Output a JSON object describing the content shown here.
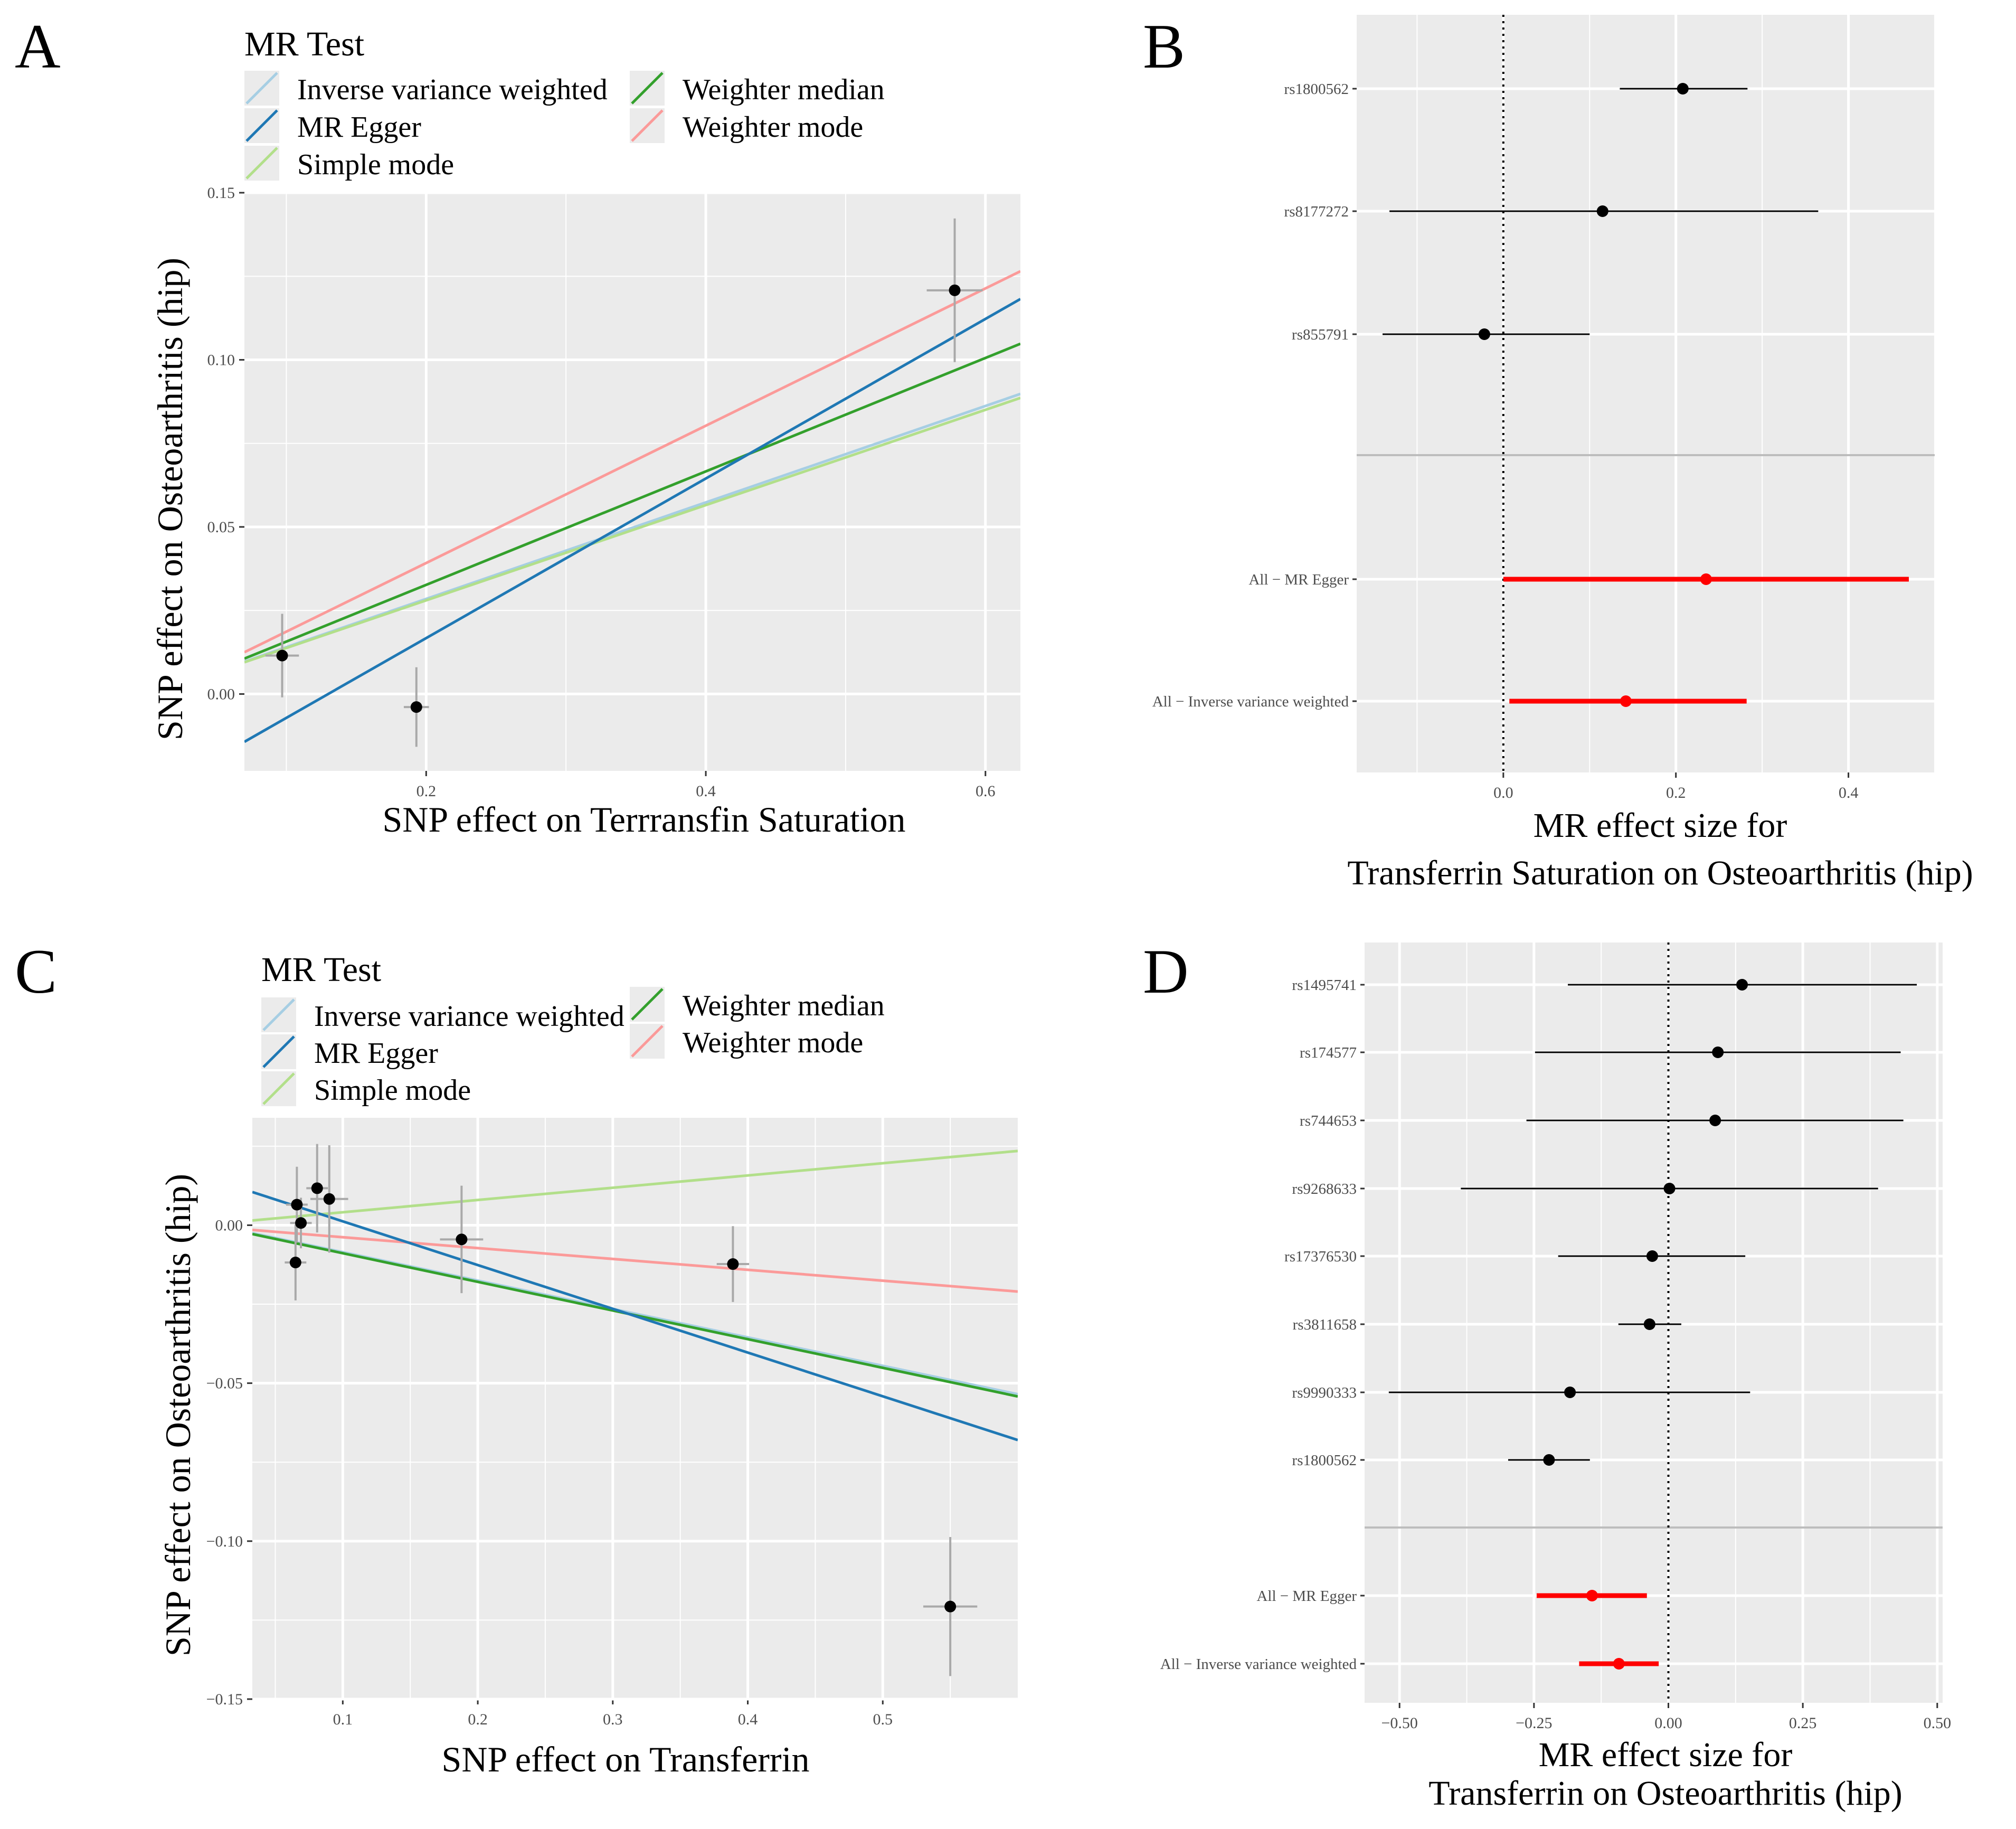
{
  "colors": {
    "ivw": "#a6cee3",
    "egger": "#1f78b4",
    "simple_mode": "#b2df8a",
    "weighted_median": "#33a02c",
    "weighted_mode": "#fb9a99",
    "panel_bg": "#ebebeb",
    "grid": "#ffffff",
    "point": "#000000",
    "error_bar": "#a9a9a9",
    "summary": "#ff0000",
    "ci": "#000000",
    "divider": "#bdbdbd"
  },
  "chart_data": [
    {
      "panel": "A",
      "type": "scatter",
      "legend_title": "MR Test",
      "legend": [
        {
          "label": "Inverse variance weighted",
          "color": "#a6cee3"
        },
        {
          "label": "MR Egger",
          "color": "#1f78b4"
        },
        {
          "label": "Simple mode",
          "color": "#b2df8a"
        },
        {
          "label": "Weighter median",
          "color": "#33a02c"
        },
        {
          "label": "Weighter mode",
          "color": "#fb9a99"
        }
      ],
      "xlabel": "SNP effect on Terrransfin Saturation",
      "ylabel": "SNP effect on Osteoarthritis (hip)",
      "xlim": [
        0.07,
        0.625
      ],
      "ylim": [
        -0.023,
        0.15
      ],
      "xticks": [
        {
          "v": 0.2,
          "label": "0.2"
        },
        {
          "v": 0.4,
          "label": "0.4"
        },
        {
          "v": 0.6,
          "label": "0.6"
        }
      ],
      "yticks": [
        {
          "v": 0.0,
          "label": "0.00"
        },
        {
          "v": 0.05,
          "label": "0.05"
        },
        {
          "v": 0.1,
          "label": "0.10"
        },
        {
          "v": 0.15,
          "label": "0.15"
        }
      ],
      "points": [
        {
          "x": 0.097,
          "y": 0.0115,
          "xerr": 0.012,
          "yerr": 0.0125
        },
        {
          "x": 0.193,
          "y": -0.0039,
          "xerr": 0.009,
          "yerr": 0.0119
        },
        {
          "x": 0.578,
          "y": 0.1208,
          "xerr": 0.02,
          "yerr": 0.0215
        }
      ],
      "lines": [
        {
          "method": "Weighter mode",
          "color": "#fb9a99",
          "x1": 0.07,
          "y1": 0.0125,
          "x2": 0.625,
          "y2": 0.1265
        },
        {
          "method": "Weighter median",
          "color": "#33a02c",
          "x1": 0.07,
          "y1": 0.0106,
          "x2": 0.625,
          "y2": 0.1048
        },
        {
          "method": "Inverse variance weighted",
          "color": "#a6cee3",
          "x1": 0.07,
          "y1": 0.0097,
          "x2": 0.625,
          "y2": 0.0898
        },
        {
          "method": "Simple mode",
          "color": "#b2df8a",
          "x1": 0.07,
          "y1": 0.0095,
          "x2": 0.625,
          "y2": 0.0886
        },
        {
          "method": "MR Egger",
          "color": "#1f78b4",
          "x1": 0.07,
          "y1": -0.0143,
          "x2": 0.625,
          "y2": 0.1182
        }
      ]
    },
    {
      "panel": "B",
      "type": "forest",
      "xlabel": [
        "MR effect size for",
        "Transferrin Saturation on Osteoarthritis (hip)"
      ],
      "xlim": [
        -0.17,
        0.5
      ],
      "xticks": [
        {
          "v": 0.0,
          "label": "0.0"
        },
        {
          "v": 0.2,
          "label": "0.2"
        },
        {
          "v": 0.4,
          "label": "0.4"
        }
      ],
      "snps": [
        {
          "label": "rs1800562",
          "est": 0.208,
          "lo": 0.135,
          "hi": 0.283
        },
        {
          "label": "rs8177272",
          "est": 0.115,
          "lo": -0.132,
          "hi": 0.365
        },
        {
          "label": "rs855791",
          "est": -0.022,
          "lo": -0.14,
          "hi": 0.1
        }
      ],
      "summaries": [
        {
          "label": "All − MR Egger",
          "est": 0.235,
          "lo": 0.0,
          "hi": 0.47
        },
        {
          "label": "All − Inverse variance weighted",
          "est": 0.142,
          "lo": 0.007,
          "hi": 0.282
        }
      ]
    },
    {
      "panel": "C",
      "type": "scatter",
      "legend_title": "MR Test",
      "legend": [
        {
          "label": "Inverse variance weighted",
          "color": "#a6cee3"
        },
        {
          "label": "MR Egger",
          "color": "#1f78b4"
        },
        {
          "label": "Simple mode",
          "color": "#b2df8a"
        },
        {
          "label": "Weighter median",
          "color": "#33a02c"
        },
        {
          "label": "Weighter mode",
          "color": "#fb9a99"
        }
      ],
      "xlabel": "SNP effect on Transferrin",
      "ylabel": "SNP effect on Osteoarthritis (hip)",
      "xlim": [
        0.033,
        0.6
      ],
      "ylim": [
        -0.15,
        0.034
      ],
      "xticks": [
        {
          "v": 0.1,
          "label": "0.1"
        },
        {
          "v": 0.2,
          "label": "0.2"
        },
        {
          "v": 0.3,
          "label": "0.3"
        },
        {
          "v": 0.4,
          "label": "0.4"
        },
        {
          "v": 0.5,
          "label": "0.5"
        }
      ],
      "yticks": [
        {
          "v": -0.15,
          "label": "−0.15"
        },
        {
          "v": -0.1,
          "label": "−0.10"
        },
        {
          "v": -0.05,
          "label": "−0.05"
        },
        {
          "v": 0.0,
          "label": "0.00"
        }
      ],
      "points": [
        {
          "x": 0.066,
          "y": 0.0065,
          "xerr": 0.008,
          "yerr": 0.012
        },
        {
          "x": 0.069,
          "y": 0.0007,
          "xerr": 0.008,
          "yerr": 0.008
        },
        {
          "x": 0.065,
          "y": -0.0118,
          "xerr": 0.008,
          "yerr": 0.012
        },
        {
          "x": 0.081,
          "y": 0.0117,
          "xerr": 0.008,
          "yerr": 0.014
        },
        {
          "x": 0.09,
          "y": 0.0083,
          "xerr": 0.014,
          "yerr": 0.017
        },
        {
          "x": 0.188,
          "y": -0.0045,
          "xerr": 0.016,
          "yerr": 0.017
        },
        {
          "x": 0.389,
          "y": -0.0123,
          "xerr": 0.012,
          "yerr": 0.012
        },
        {
          "x": 0.55,
          "y": -0.1207,
          "xerr": 0.02,
          "yerr": 0.022
        }
      ],
      "lines": [
        {
          "method": "Simple mode",
          "color": "#b2df8a",
          "x1": 0.033,
          "y1": 0.0015,
          "x2": 0.6,
          "y2": 0.0235
        },
        {
          "method": "Weighter mode",
          "color": "#fb9a99",
          "x1": 0.033,
          "y1": -0.0015,
          "x2": 0.6,
          "y2": -0.021
        },
        {
          "method": "Inverse variance weighted",
          "color": "#a6cee3",
          "x1": 0.033,
          "y1": -0.0025,
          "x2": 0.6,
          "y2": -0.0535
        },
        {
          "method": "Weighter median",
          "color": "#33a02c",
          "x1": 0.033,
          "y1": -0.0028,
          "x2": 0.6,
          "y2": -0.0542
        },
        {
          "method": "MR Egger",
          "color": "#1f78b4",
          "x1": 0.033,
          "y1": 0.0105,
          "x2": 0.6,
          "y2": -0.068
        }
      ]
    },
    {
      "panel": "D",
      "type": "forest",
      "xlabel": [
        "MR effect size for",
        "Transferrin on Osteoarthritis (hip)"
      ],
      "xlim": [
        -0.565,
        0.51
      ],
      "xticks": [
        {
          "v": -0.5,
          "label": "−0.50"
        },
        {
          "v": -0.25,
          "label": "−0.25"
        },
        {
          "v": 0.0,
          "label": "0.00"
        },
        {
          "v": 0.25,
          "label": "0.25"
        },
        {
          "v": 0.5,
          "label": "0.50"
        }
      ],
      "snps": [
        {
          "label": "rs1495741",
          "est": 0.137,
          "lo": -0.187,
          "hi": 0.462
        },
        {
          "label": "rs174577",
          "est": 0.092,
          "lo": -0.248,
          "hi": 0.432
        },
        {
          "label": "rs744653",
          "est": 0.087,
          "lo": -0.264,
          "hi": 0.437
        },
        {
          "label": "rs9268633",
          "est": 0.002,
          "lo": -0.386,
          "hi": 0.39
        },
        {
          "label": "rs17376530",
          "est": -0.03,
          "lo": -0.205,
          "hi": 0.143
        },
        {
          "label": "rs3811658",
          "est": -0.035,
          "lo": -0.093,
          "hi": 0.024
        },
        {
          "label": "rs9990333",
          "est": -0.183,
          "lo": -0.52,
          "hi": 0.152
        },
        {
          "label": "rs1800562",
          "est": -0.222,
          "lo": -0.298,
          "hi": -0.146
        }
      ],
      "summaries": [
        {
          "label": "All − MR Egger",
          "est": -0.142,
          "lo": -0.245,
          "hi": -0.04
        },
        {
          "label": "All − Inverse variance weighted",
          "est": -0.092,
          "lo": -0.166,
          "hi": -0.018
        }
      ]
    }
  ],
  "panel_labels": [
    "A",
    "B",
    "C",
    "D"
  ]
}
